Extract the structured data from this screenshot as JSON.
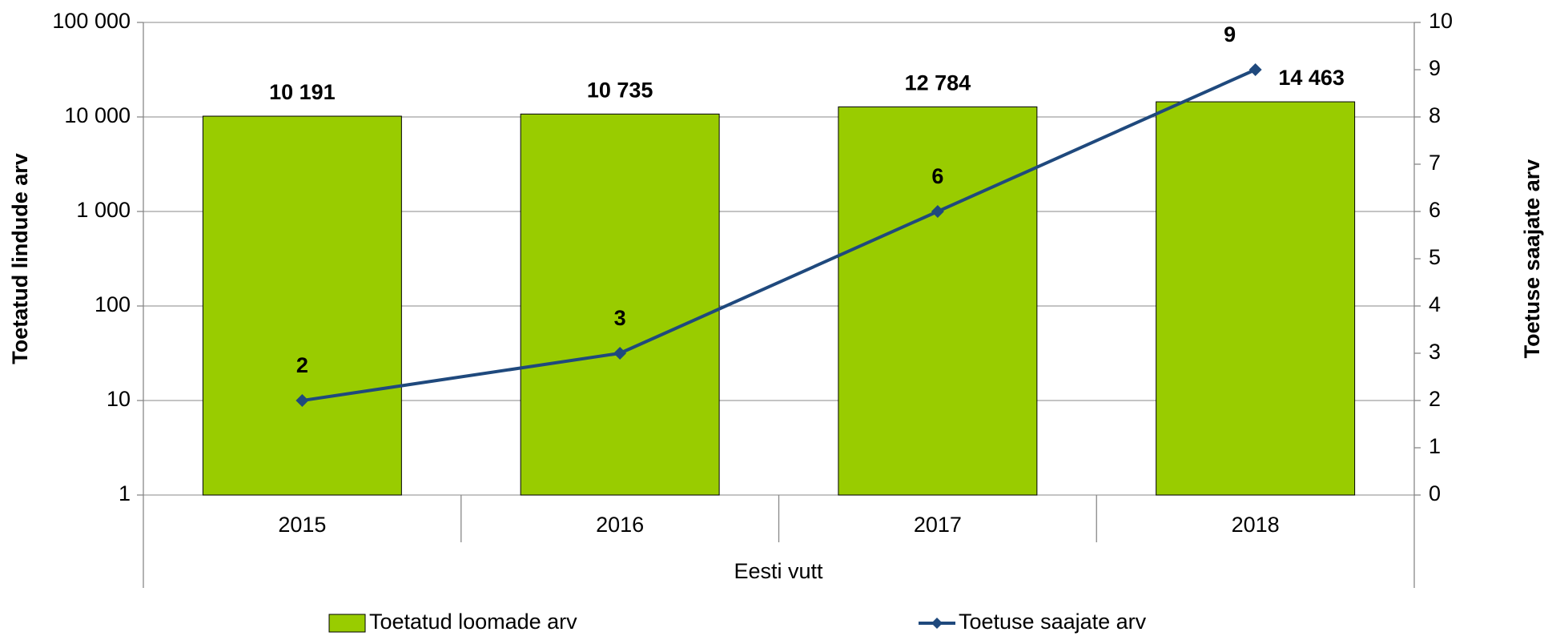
{
  "chart_data": {
    "type": "bar",
    "categories": [
      "2015",
      "2016",
      "2017",
      "2018"
    ],
    "group_label": "Eesti vutt",
    "ylabel": "Toetatud lindude arv",
    "y2label": "Toetuse saajate arv",
    "ylim": [
      1,
      100000
    ],
    "log_y": true,
    "yticks": [
      1,
      10,
      100,
      {
        "value": 1000,
        "label": "1 000"
      },
      {
        "value": 10000,
        "label": "10 000"
      },
      {
        "value": 100000,
        "label": "100 000"
      }
    ],
    "y2lim": [
      0,
      10
    ],
    "y2ticks": [
      0,
      1,
      2,
      3,
      4,
      5,
      6,
      7,
      8,
      9,
      10
    ],
    "grid": true,
    "legend": "bottom",
    "series": [
      {
        "name": "Toetatud loomade arv",
        "color": "#99cc00",
        "values": [
          10191,
          10735,
          12784,
          14463
        ],
        "value_labels": [
          "10 191",
          "10 735",
          "12 784",
          "14 463"
        ]
      },
      {
        "name": "Toetuse saajate arv",
        "type": "line",
        "axis": "y2",
        "color": "#1f497d",
        "values": [
          2,
          3,
          6,
          9
        ]
      }
    ]
  }
}
